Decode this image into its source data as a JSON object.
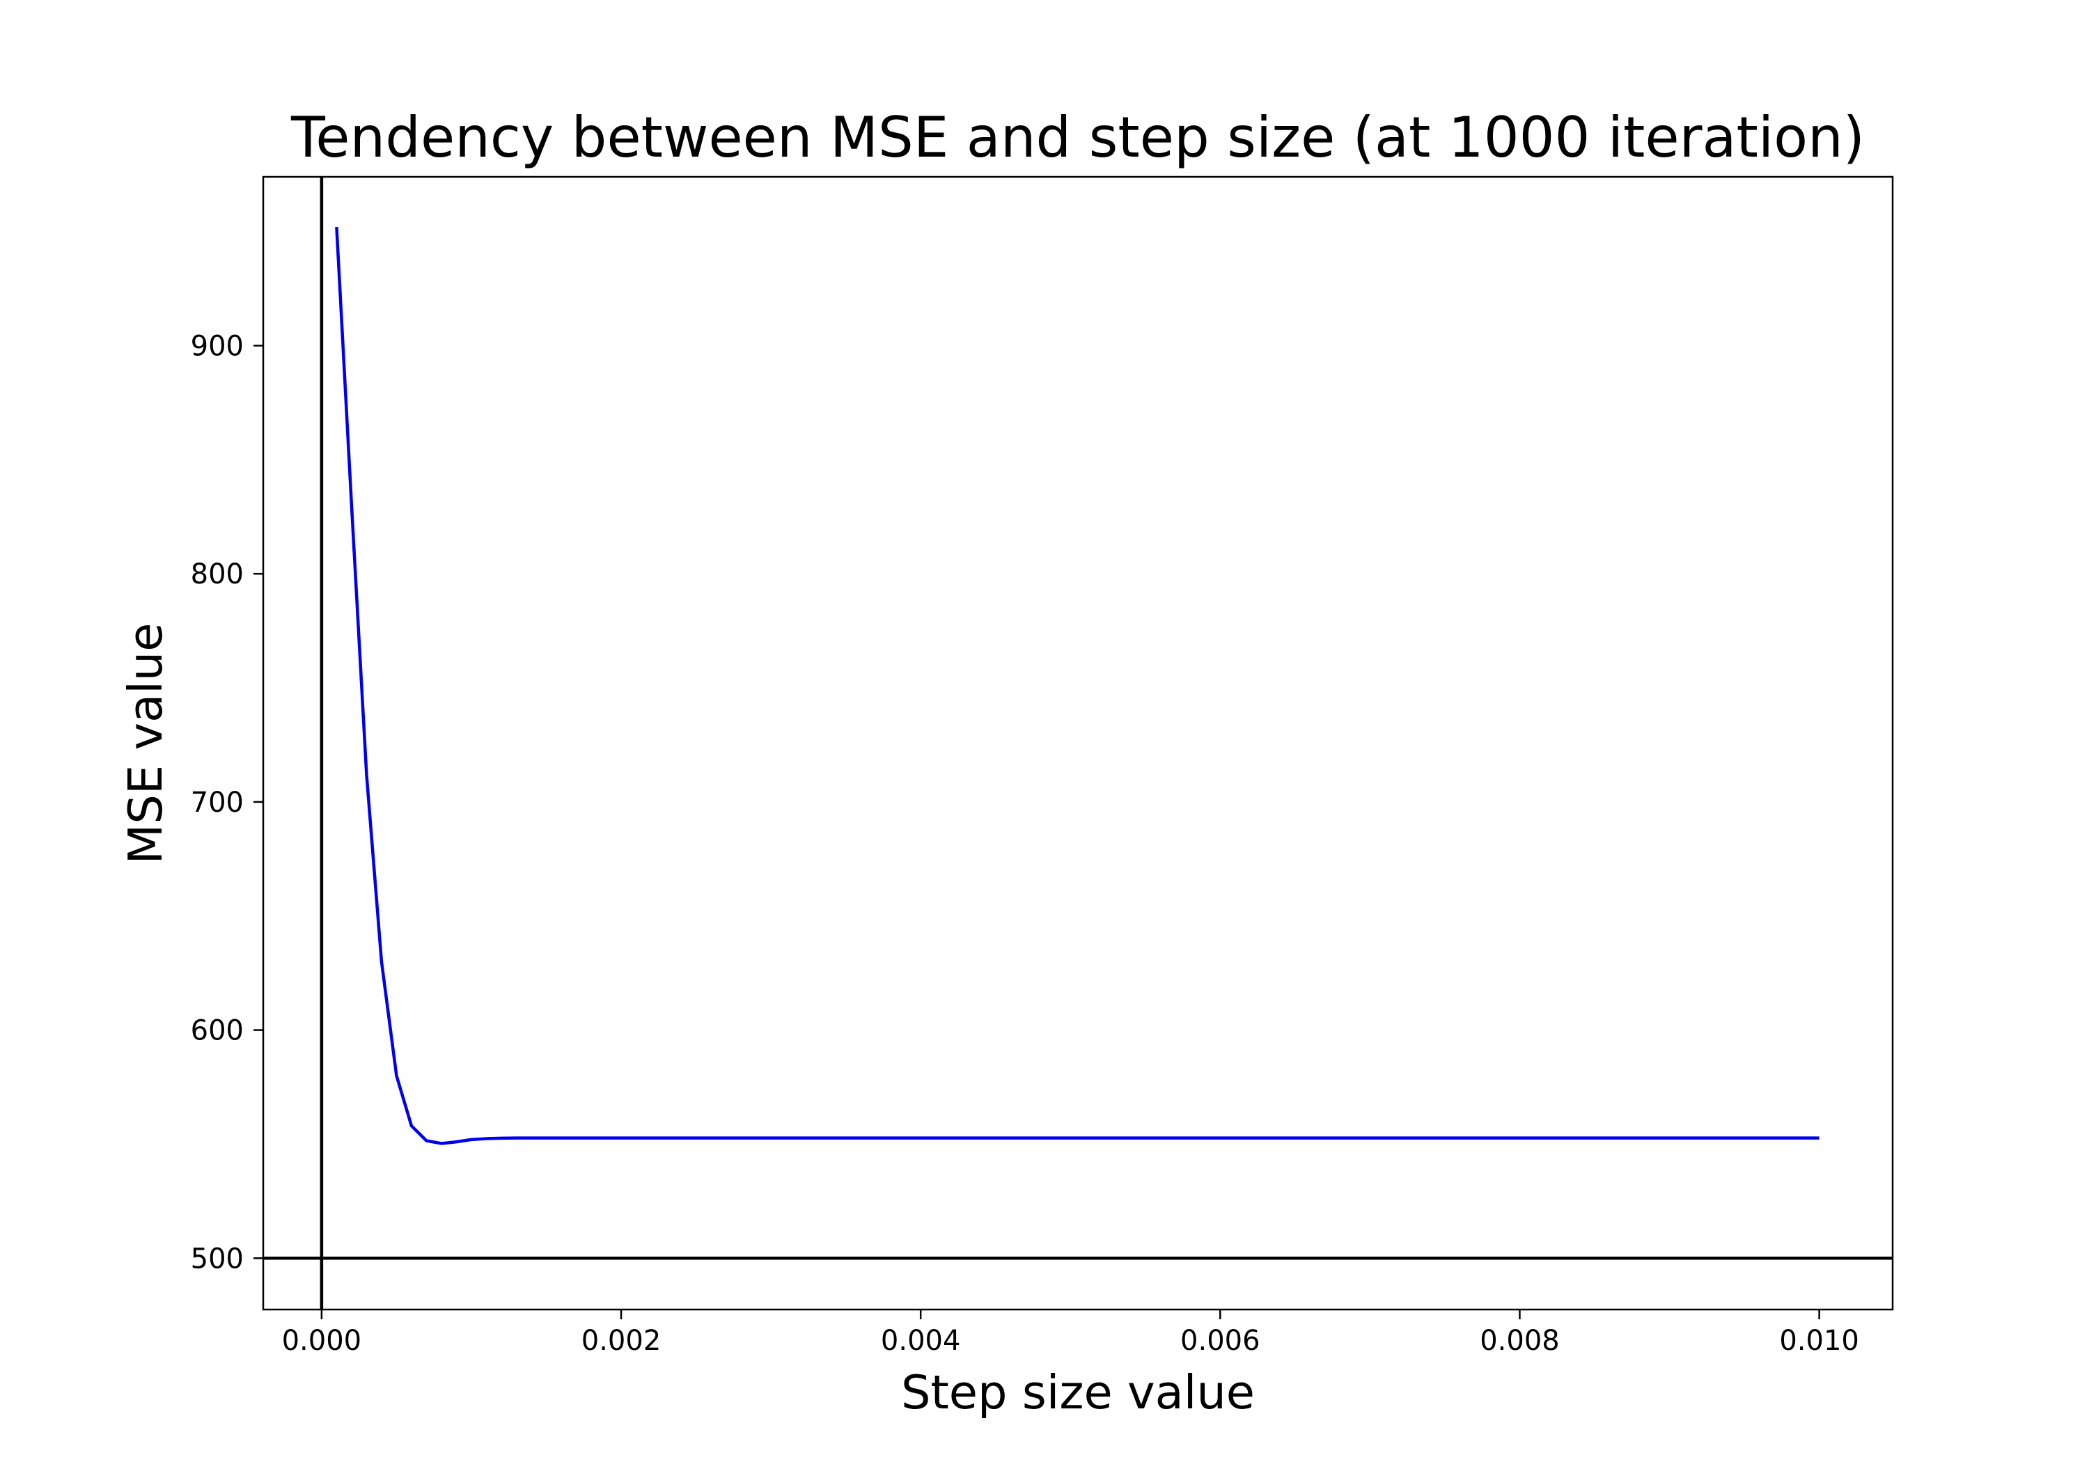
{
  "chart_data": {
    "type": "line",
    "title": "Tendency between MSE and step size (at 1000 iteration)",
    "xlabel": "Step size value",
    "ylabel": "MSE value",
    "xlim": [
      -0.00039,
      0.01049
    ],
    "ylim": [
      477.5,
      974
    ],
    "x_ticks": [
      0.0,
      0.002,
      0.004,
      0.006,
      0.008,
      0.01
    ],
    "x_tick_labels": [
      "0.000",
      "0.002",
      "0.004",
      "0.006",
      "0.008",
      "0.010"
    ],
    "y_ticks": [
      500,
      600,
      700,
      800,
      900
    ],
    "y_tick_labels": [
      "500",
      "600",
      "700",
      "800",
      "900"
    ],
    "reference_lines": {
      "vertical_x": 0,
      "horizontal_y": 500,
      "color": "#000000"
    },
    "grid": false,
    "series": [
      {
        "color": "#0000ee",
        "x": [
          0.0001,
          0.0002,
          0.0003,
          0.0004,
          0.0005,
          0.0006,
          0.0007,
          0.0008,
          0.0009,
          0.001,
          0.0011,
          0.0012,
          0.0013,
          0.0015,
          0.002,
          0.003,
          0.004,
          0.005,
          0.006,
          0.007,
          0.008,
          0.009,
          0.01
        ],
        "y": [
          952,
          830,
          712,
          630,
          580,
          558,
          551.5,
          550.3,
          551,
          552,
          552.4,
          552.6,
          552.7,
          552.7,
          552.7,
          552.7,
          552.7,
          552.7,
          552.7,
          552.7,
          552.7,
          552.7,
          552.7
        ]
      }
    ]
  }
}
